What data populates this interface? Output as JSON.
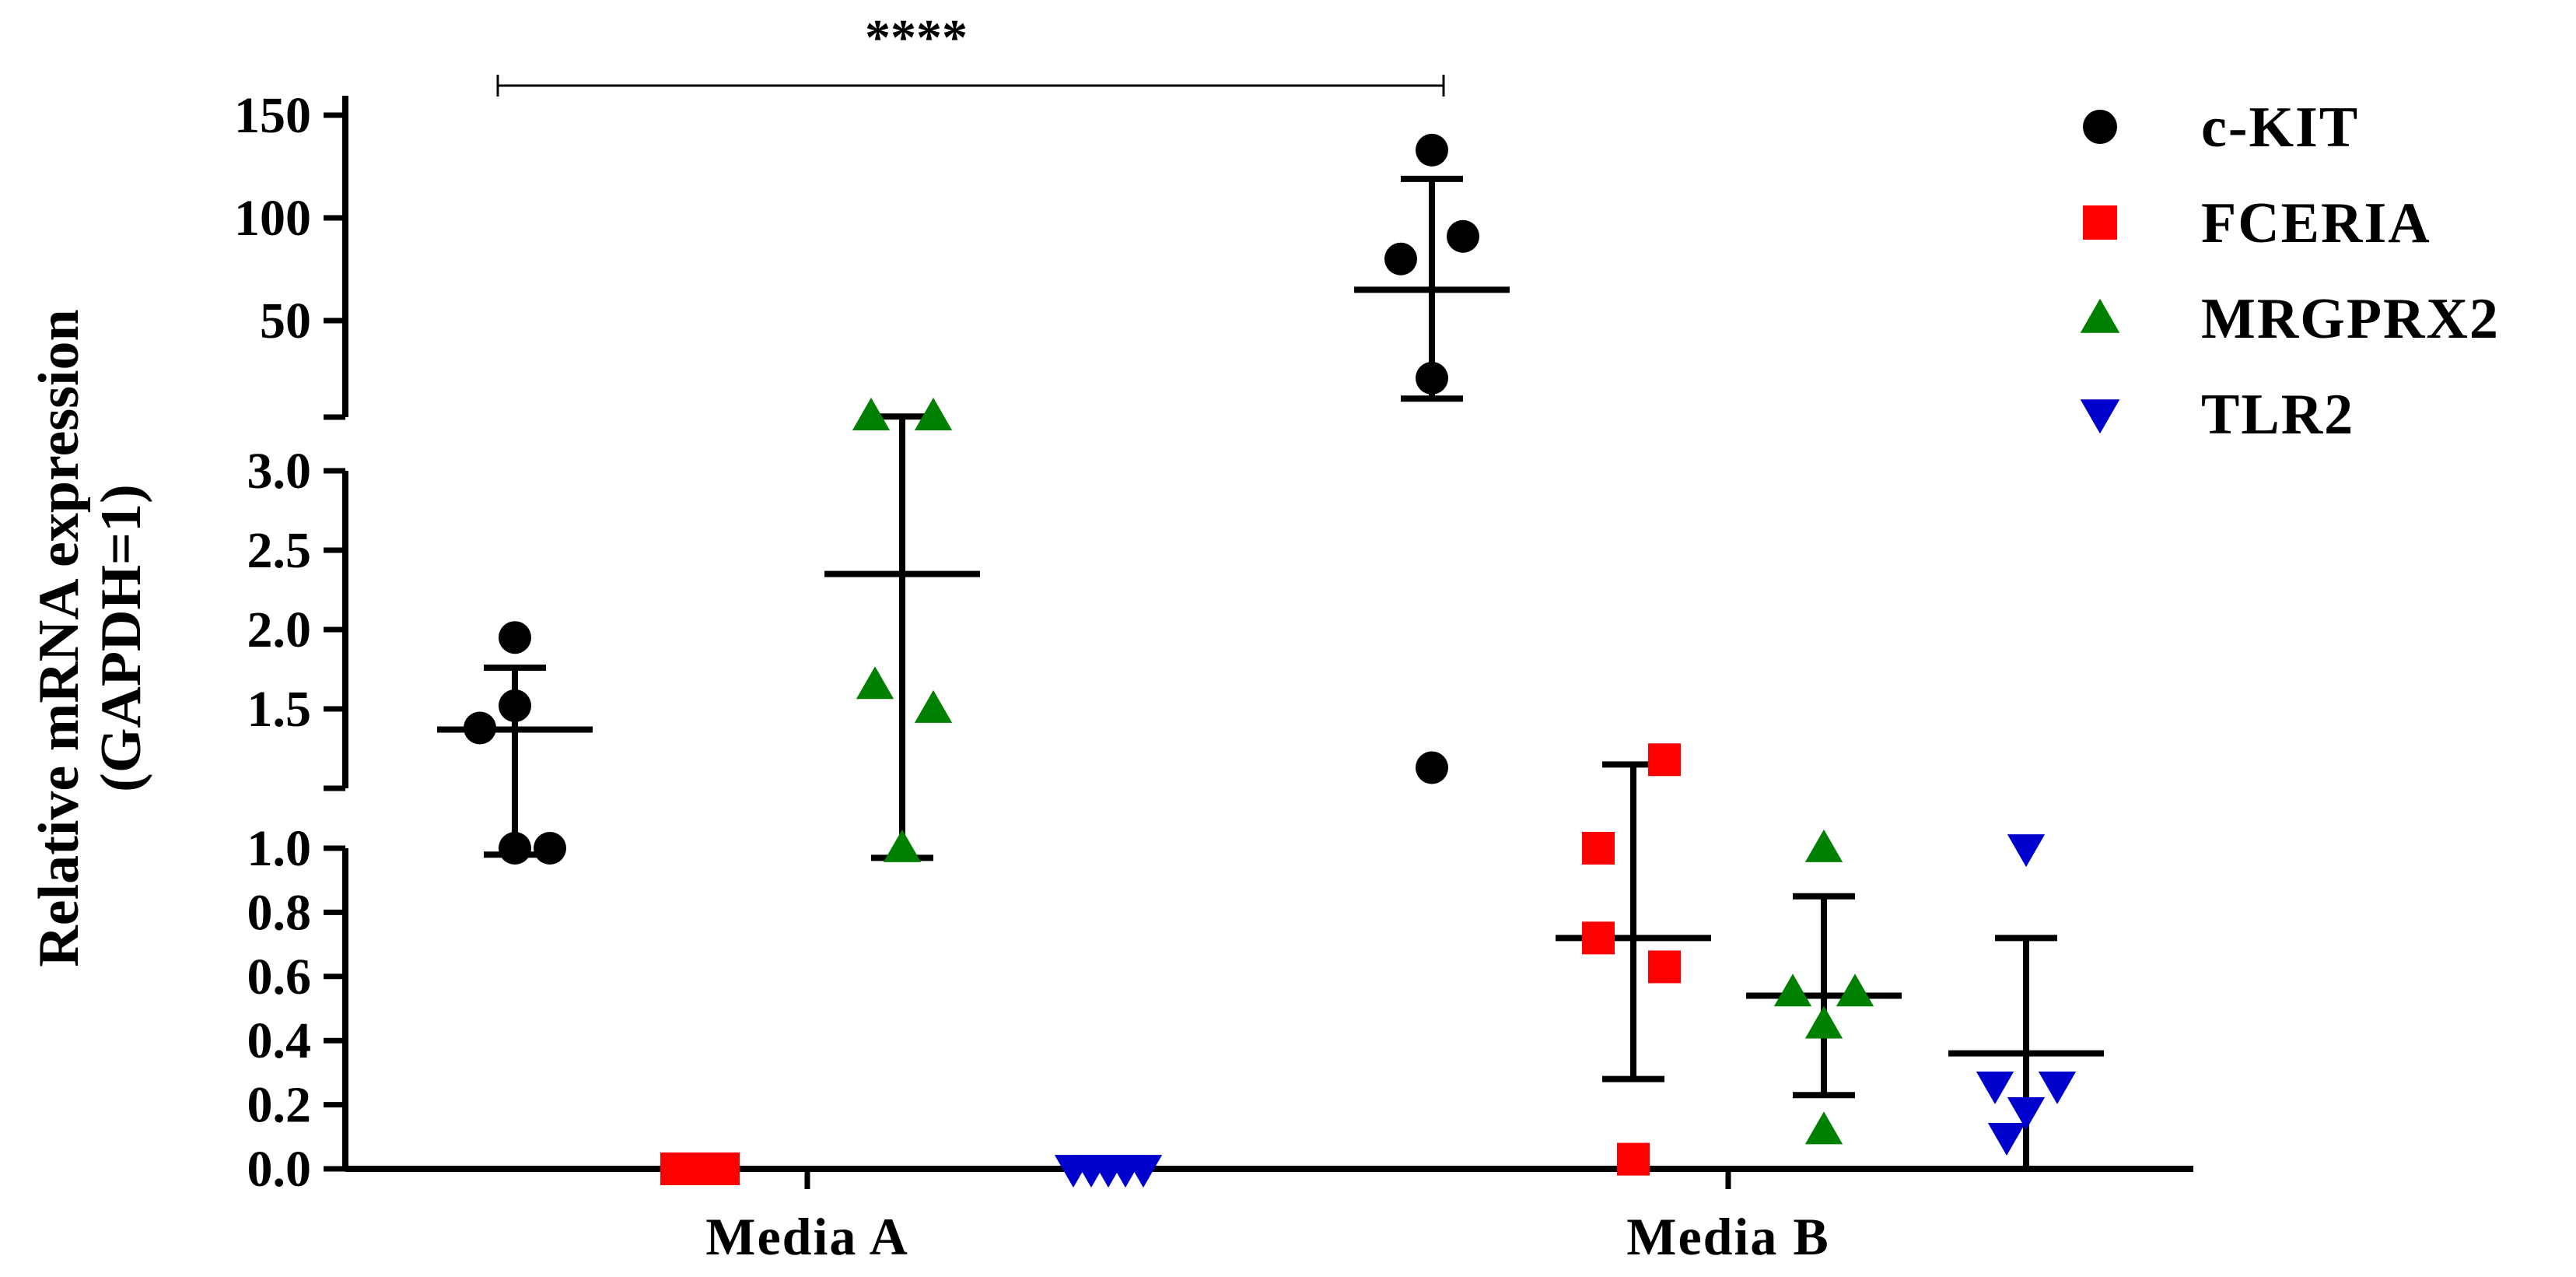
{
  "chart_data": {
    "type": "scatter",
    "title": "",
    "ylabel": [
      "Relative mRNA expression",
      "(GAPDH=1)"
    ],
    "y_axis_broken": true,
    "y_segments": [
      {
        "range": [
          0,
          1.0
        ],
        "ticks": [
          0.0,
          0.2,
          0.4,
          0.6,
          0.8,
          1.0
        ],
        "tick_labels": [
          "0.0",
          "0.2",
          "0.4",
          "0.6",
          "0.8",
          "1.0"
        ]
      },
      {
        "range": [
          1.0,
          3.0
        ],
        "ticks": [
          1.0,
          1.5,
          2.0,
          2.5,
          3.0
        ],
        "tick_labels": [
          "1.0",
          "1.5",
          "2.0",
          "2.5",
          "3.0"
        ]
      },
      {
        "range": [
          3.0,
          150
        ],
        "ticks": [
          50,
          100,
          150
        ],
        "tick_labels": [
          "50",
          "100",
          "150"
        ]
      }
    ],
    "categories": [
      "Media A",
      "Media B"
    ],
    "legend_position": "top-right",
    "significance": {
      "label": "****"
    },
    "series": [
      {
        "name": "c-KIT",
        "marker": "circle",
        "color": "#000000",
        "groups": [
          {
            "category": "Media A",
            "points": [
              1.95,
              1.52,
              1.38,
              1.0,
              1.0
            ],
            "mean": 1.37,
            "err_upper": 1.76,
            "err_lower": 0.98
          },
          {
            "category": "Media B",
            "points": [
              133,
              80,
              91,
              22,
              1.13
            ],
            "mean": 65,
            "err_upper": 119,
            "err_lower": 12
          }
        ]
      },
      {
        "name": "FCERIA",
        "marker": "square",
        "color": "#ff0000",
        "groups": [
          {
            "category": "Media A",
            "points": [
              0.0,
              0.0,
              0.0,
              0.0,
              0.0
            ],
            "mean": 0.0,
            "err_upper": 0.0,
            "err_lower": 0.0
          },
          {
            "category": "Media B",
            "points": [
              1.18,
              1.0,
              0.72,
              0.63,
              0.03
            ],
            "mean": 0.72,
            "err_upper": 1.15,
            "err_lower": 0.28
          }
        ]
      },
      {
        "name": "MRGPRX2",
        "marker": "triangle-up",
        "color": "#008000",
        "groups": [
          {
            "category": "Media A",
            "points": [
              3.3,
              3.3,
              1.65,
              1.5,
              1.0
            ],
            "mean": 2.35,
            "err_upper": 3.3,
            "err_lower": 0.97
          },
          {
            "category": "Media B",
            "points": [
              1.0,
              0.55,
              0.55,
              0.45,
              0.12
            ],
            "mean": 0.54,
            "err_upper": 0.85,
            "err_lower": 0.23
          }
        ]
      },
      {
        "name": "TLR2",
        "marker": "triangle-down",
        "color": "#0000cc",
        "groups": [
          {
            "category": "Media A",
            "points": [
              0.0,
              0.0,
              0.0,
              0.0,
              0.0
            ],
            "mean": 0.0,
            "err_upper": 0.0,
            "err_lower": 0.0
          },
          {
            "category": "Media B",
            "points": [
              1.0,
              0.26,
              0.26,
              0.18,
              0.1
            ],
            "mean": 0.36,
            "err_upper": 0.72,
            "err_lower": 0.0
          }
        ]
      }
    ]
  }
}
